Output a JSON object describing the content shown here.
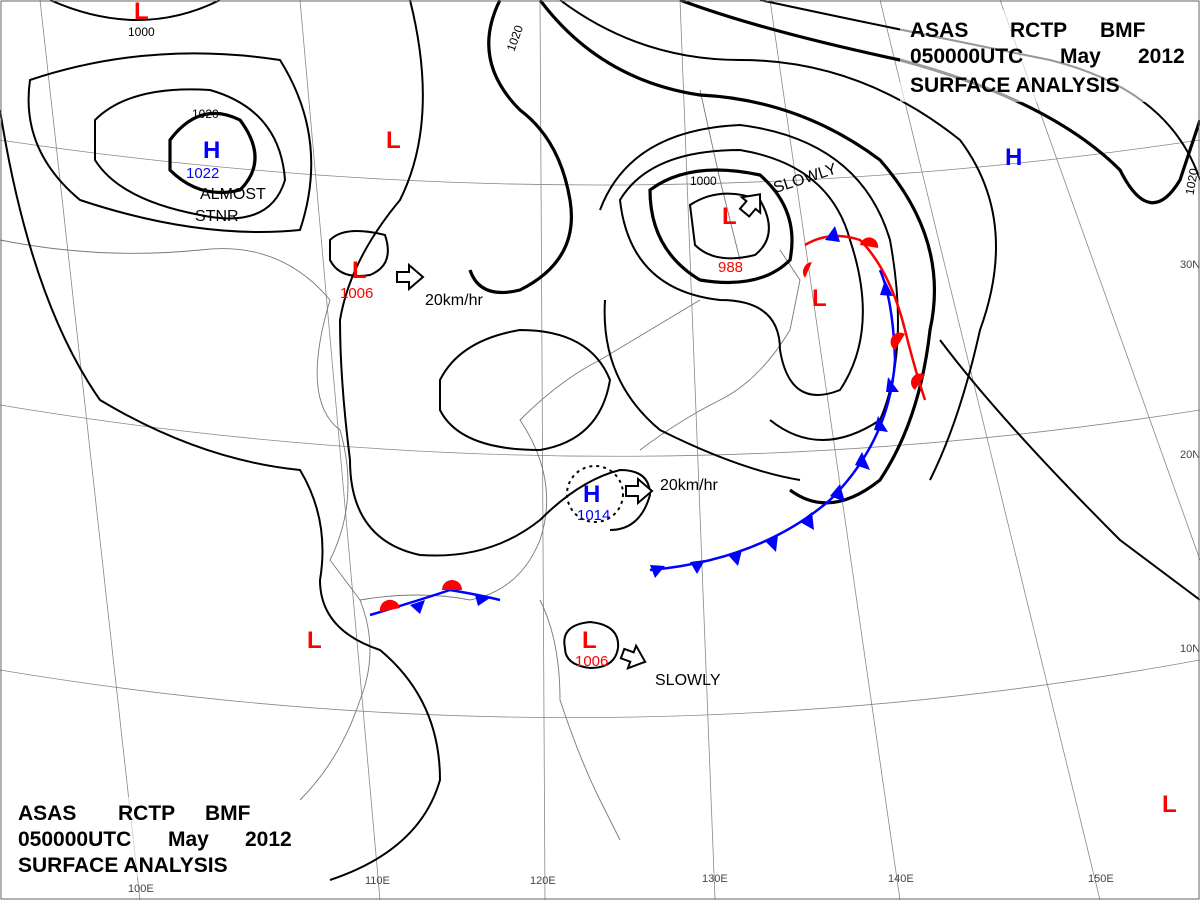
{
  "header_top": {
    "line1": [
      "ASAS",
      "RCTP",
      "BMF"
    ],
    "line2": [
      "050000UTC",
      "May",
      "2012"
    ],
    "line3": "SURFACE  ANALYSIS"
  },
  "header_bottom": {
    "line1": [
      "ASAS",
      "RCTP",
      "BMF"
    ],
    "line2": [
      "050000UTC",
      "May",
      "2012"
    ],
    "line3": "SURFACE  ANALYSIS"
  },
  "colors": {
    "high": "#0000ff",
    "low": "#ff0000",
    "cold_front": "#0000ff",
    "warm_front": "#ff0000"
  },
  "pressure_centers": [
    {
      "type": "H",
      "value": "1022",
      "note": "ALMOST STNR"
    },
    {
      "type": "L",
      "value": ""
    },
    {
      "type": "L",
      "value": "1006",
      "motion": "20km/hr"
    },
    {
      "type": "L",
      "value": "988"
    },
    {
      "type": "L",
      "value": ""
    },
    {
      "type": "H",
      "value": "1014",
      "motion": "20km/hr"
    },
    {
      "type": "L",
      "value": "1006",
      "motion": "SLOWLY"
    },
    {
      "type": "L",
      "value": ""
    },
    {
      "type": "L",
      "value": ""
    },
    {
      "type": "H",
      "value": ""
    },
    {
      "type": "L",
      "value": ""
    }
  ],
  "extra_labels": {
    "slowly_north": "SLOWLY",
    "almost": "ALMOST",
    "stnr": "STNR"
  },
  "isobar_labels": [
    "1000",
    "1020",
    "1020",
    "1000",
    "1020"
  ],
  "lat_labels": [
    "30N",
    "20N",
    "10N"
  ],
  "lon_labels": [
    "100E",
    "110E",
    "120E",
    "130E",
    "140E",
    "150E"
  ]
}
